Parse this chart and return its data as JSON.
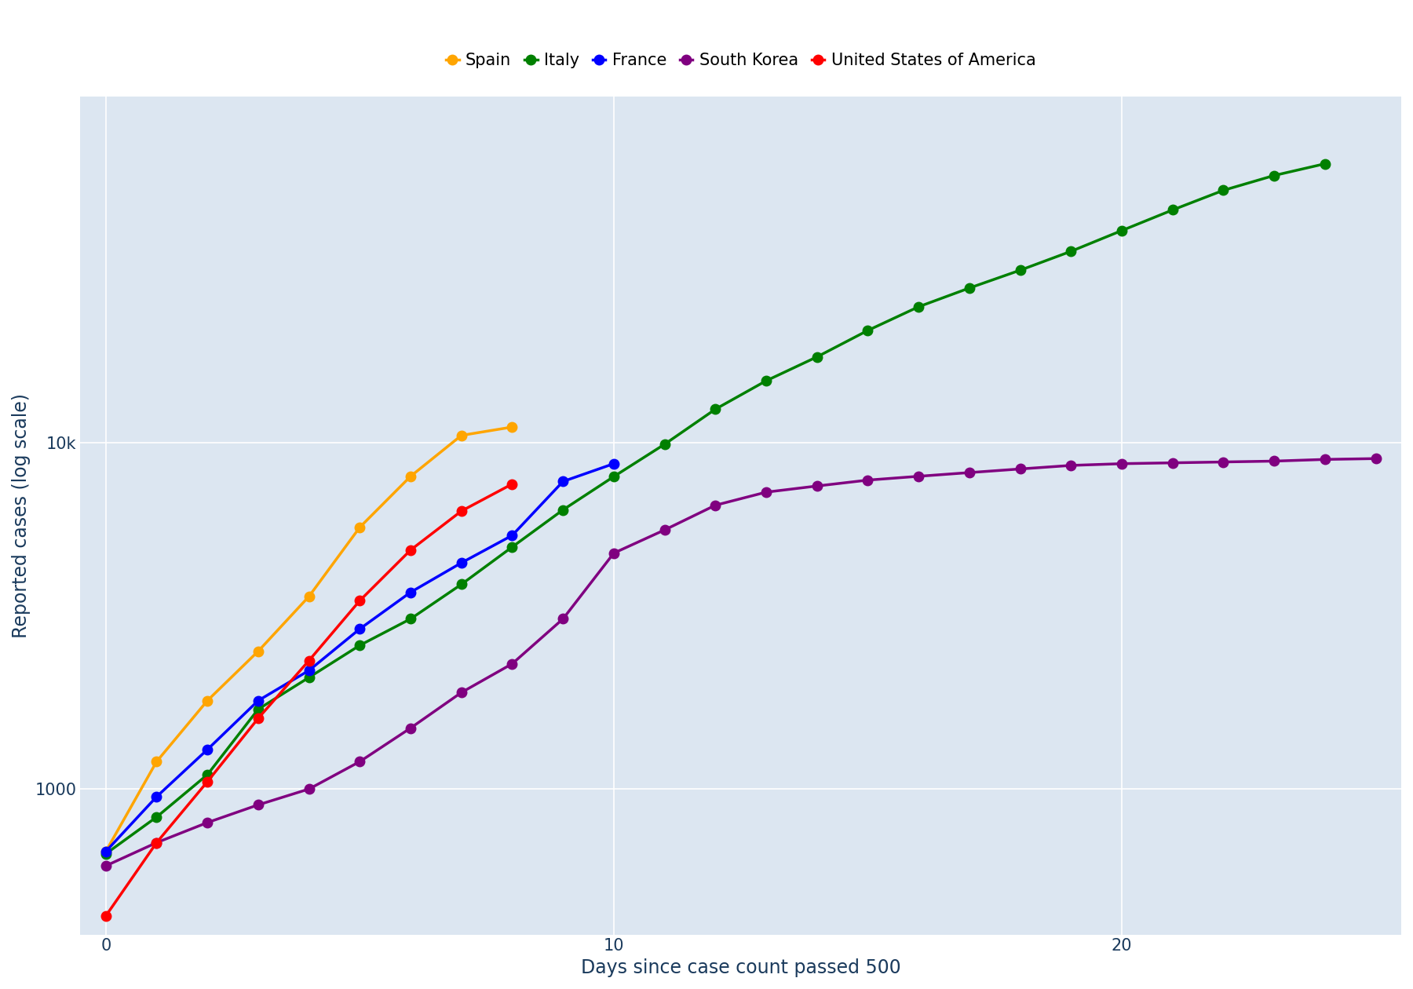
{
  "xlabel": "Days since case count passed 500",
  "ylabel": "Reported cases (log scale)",
  "background_color": "#dce6f1",
  "fig_background": "#ffffff",
  "series": [
    {
      "name": "Spain",
      "color": "#FFA500",
      "marker": "o",
      "x": [
        0,
        1,
        2,
        3,
        4,
        5,
        6,
        7,
        8
      ],
      "y": [
        660,
        1200,
        1800,
        2500,
        3600,
        5700,
        8000,
        10500,
        11100
      ]
    },
    {
      "name": "Italy",
      "color": "#008000",
      "marker": "o",
      "x": [
        0,
        1,
        2,
        3,
        4,
        5,
        6,
        7,
        8,
        9,
        10,
        11,
        12,
        13,
        14,
        15,
        16,
        17,
        18,
        19,
        20,
        21,
        22,
        23,
        24
      ],
      "y": [
        650,
        830,
        1100,
        1700,
        2100,
        2600,
        3100,
        3900,
        5000,
        6400,
        7985,
        9900,
        12500,
        15100,
        17700,
        21100,
        24700,
        27980,
        31500,
        35713,
        41000,
        47021,
        53578,
        59138,
        63927
      ]
    },
    {
      "name": "France",
      "color": "#0000FF",
      "marker": "o",
      "x": [
        0,
        1,
        2,
        3,
        4,
        5,
        6,
        7,
        8,
        9,
        10
      ],
      "y": [
        660,
        950,
        1300,
        1800,
        2200,
        2900,
        3700,
        4500,
        5400,
        7730,
        8700
      ]
    },
    {
      "name": "South Korea",
      "color": "#800080",
      "marker": "o",
      "x": [
        0,
        1,
        2,
        3,
        4,
        5,
        6,
        7,
        8,
        9,
        10,
        11,
        12,
        13,
        14,
        15,
        16,
        17,
        18,
        19,
        20,
        21,
        22,
        23,
        24,
        25
      ],
      "y": [
        600,
        700,
        800,
        900,
        1000,
        1200,
        1500,
        1900,
        2300,
        3100,
        4800,
        5600,
        6600,
        7200,
        7500,
        7800,
        8000,
        8200,
        8400,
        8600,
        8700,
        8750,
        8800,
        8850,
        8950,
        9000
      ]
    },
    {
      "name": "United States of America",
      "color": "#FF0000",
      "marker": "o",
      "x": [
        0,
        1,
        2,
        3,
        4,
        5,
        6,
        7,
        8
      ],
      "y": [
        430,
        700,
        1050,
        1600,
        2350,
        3500,
        4900,
        6350,
        7600
      ]
    }
  ],
  "xlim": [
    -0.5,
    25.5
  ],
  "ylim": [
    380,
    100000
  ],
  "yticks": [
    1000,
    10000
  ],
  "ytick_labels": [
    "1000",
    "10k"
  ],
  "xticks": [
    0,
    10,
    20
  ],
  "grid_color": "#ffffff",
  "legend_fontsize": 15,
  "axis_label_fontsize": 17,
  "tick_fontsize": 15,
  "marker_size": 9,
  "line_width": 2.5
}
